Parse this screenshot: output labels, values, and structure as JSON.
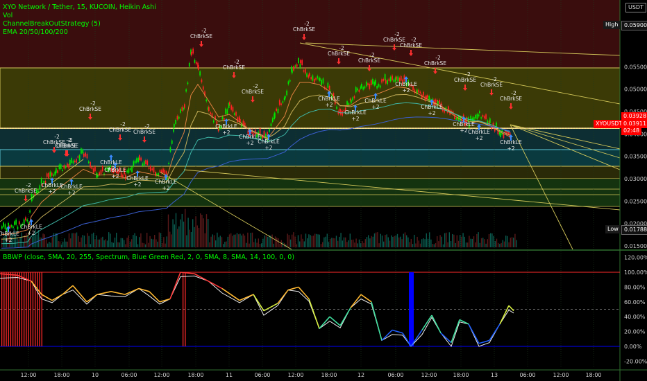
{
  "legend": {
    "symbol_line": "XYO Network / Tether, 15, KUCOIN, Heikin Ashi",
    "vol_label": "Vol",
    "strategy_label": "ChannelBreakOutStrategy (5)",
    "ema_label": "EMA 20/50/100/200",
    "bbwp_label": "BBWP (close, SMA, 20, 255, Spectrum, Blue Green Red, 2, 0, SMA, 8, SMA, 14, 100, 0, 0)"
  },
  "price_axis": {
    "currency": "USDT",
    "ticks": [
      "0.05500",
      "0.05000",
      "0.04500",
      "0.04000",
      "0.03500",
      "0.03000",
      "0.02500",
      "0.02000",
      "0.01500"
    ],
    "high_label": "High",
    "high_value": "0.05900",
    "low_label": "Low",
    "low_value": "0.01788",
    "price_1": "0.03928",
    "price_2": "0.03911",
    "countdown": "02:48",
    "ticker": "XYOUSDT"
  },
  "bbwp_axis": {
    "ticks": [
      "120.00%",
      "100.00%",
      "80.00%",
      "60.00%",
      "40.00%",
      "20.00%",
      "0.00%",
      "-20.00%"
    ]
  },
  "time_axis": {
    "ticks": [
      "12:00",
      "18:00",
      "10",
      "06:00",
      "12:00",
      "18:00",
      "11",
      "06:00",
      "12:00",
      "18:00",
      "12",
      "06:00",
      "12:00",
      "18:00",
      "13",
      "06:00",
      "12:00",
      "18:00"
    ]
  },
  "signals": {
    "short_label": "ChBrkSE",
    "short_qty": "-2",
    "long_label": "ChBrkLE",
    "long_qty": "+2"
  },
  "colors": {
    "up_candle": "#00e600",
    "down_candle": "#ff2222",
    "fib_line": "#d4c85a",
    "accent_red": "#ff0000",
    "bbwp_high": "#ff2a2a",
    "bbwp_low": "#0000ff"
  }
}
